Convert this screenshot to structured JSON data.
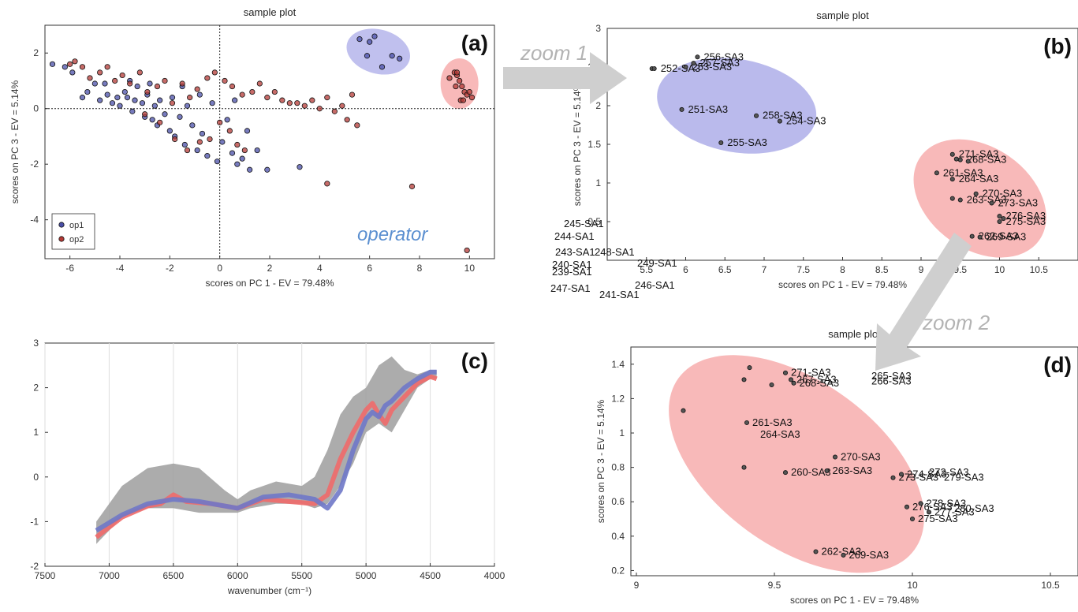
{
  "zoom1": "zoom 1",
  "zoom2": "zoom 2",
  "chart_data": [
    {
      "panel": "(a)",
      "type": "scatter",
      "title": "sample plot",
      "xlabel": "scores on PC 1 - EV = 79.48%",
      "ylabel": "scores on PC 3 - EV = 5.14%",
      "xlim": [
        -7,
        11
      ],
      "ylim": [
        -5.4,
        3
      ],
      "xticks": [
        "-6",
        "-4",
        "-2",
        "0",
        "2",
        "4",
        "6",
        "8",
        "10"
      ],
      "yticks": [
        "2",
        "0",
        "-2",
        "-4"
      ],
      "annotation": "operator",
      "legend": "bottom-left",
      "series": [
        {
          "name": "op1",
          "color": "#4a4fa8",
          "points": [
            [
              -6.7,
              1.6
            ],
            [
              -6.2,
              1.5
            ],
            [
              -5.9,
              1.3
            ],
            [
              -5.5,
              0.4
            ],
            [
              -5.3,
              0.6
            ],
            [
              -5.0,
              0.9
            ],
            [
              -4.8,
              0.3
            ],
            [
              -4.5,
              0.5
            ],
            [
              -4.3,
              0.2
            ],
            [
              -4.1,
              0.4
            ],
            [
              -4.0,
              0.1
            ],
            [
              -3.8,
              0.6
            ],
            [
              -3.7,
              0.4
            ],
            [
              -3.5,
              -0.1
            ],
            [
              -3.4,
              0.3
            ],
            [
              -3.3,
              0.8
            ],
            [
              -3.1,
              0.2
            ],
            [
              -3.0,
              -0.3
            ],
            [
              -2.9,
              0.5
            ],
            [
              -2.7,
              -0.4
            ],
            [
              -2.6,
              0.1
            ],
            [
              -2.5,
              -0.6
            ],
            [
              -2.4,
              0.3
            ],
            [
              -2.2,
              -0.2
            ],
            [
              -2.0,
              -0.8
            ],
            [
              -1.9,
              0.4
            ],
            [
              -1.8,
              -1.0
            ],
            [
              -1.6,
              -0.3
            ],
            [
              -1.4,
              -1.3
            ],
            [
              -1.3,
              0.1
            ],
            [
              -1.1,
              -0.6
            ],
            [
              -0.9,
              -1.5
            ],
            [
              -0.7,
              -0.9
            ],
            [
              -0.5,
              -1.7
            ],
            [
              -0.3,
              0.2
            ],
            [
              -0.1,
              -1.9
            ],
            [
              0.1,
              -1.2
            ],
            [
              0.3,
              -0.4
            ],
            [
              0.5,
              -1.6
            ],
            [
              0.7,
              -2.0
            ],
            [
              0.9,
              -1.8
            ],
            [
              1.2,
              -2.2
            ],
            [
              1.5,
              -1.5
            ],
            [
              1.9,
              -2.2
            ],
            [
              3.2,
              -2.1
            ],
            [
              -4.6,
              0.9
            ],
            [
              -3.6,
              1.0
            ],
            [
              -2.8,
              0.9
            ],
            [
              -1.5,
              0.8
            ],
            [
              -0.8,
              0.5
            ],
            [
              0.6,
              0.3
            ],
            [
              1.1,
              -0.8
            ],
            [
              5.6,
              2.5
            ],
            [
              5.9,
              1.9
            ],
            [
              6.2,
              2.6
            ],
            [
              6.5,
              1.5
            ],
            [
              6.9,
              1.9
            ],
            [
              7.2,
              1.8
            ],
            [
              6.0,
              2.4
            ]
          ]
        },
        {
          "name": "op2",
          "color": "#b43a36",
          "points": [
            [
              -6.0,
              1.6
            ],
            [
              -5.8,
              1.7
            ],
            [
              -5.5,
              1.5
            ],
            [
              -5.2,
              1.1
            ],
            [
              -4.8,
              1.3
            ],
            [
              -4.5,
              1.5
            ],
            [
              -4.2,
              1.0
            ],
            [
              -3.9,
              1.2
            ],
            [
              -3.6,
              0.9
            ],
            [
              -3.2,
              1.3
            ],
            [
              -2.9,
              0.6
            ],
            [
              -2.5,
              0.8
            ],
            [
              -2.2,
              1.0
            ],
            [
              -1.9,
              0.2
            ],
            [
              -1.5,
              0.9
            ],
            [
              -1.2,
              0.4
            ],
            [
              -0.9,
              0.7
            ],
            [
              -0.5,
              1.1
            ],
            [
              -0.2,
              1.3
            ],
            [
              0.2,
              1.0
            ],
            [
              0.5,
              0.8
            ],
            [
              0.9,
              0.5
            ],
            [
              1.3,
              0.6
            ],
            [
              1.6,
              0.9
            ],
            [
              1.9,
              0.4
            ],
            [
              2.2,
              0.6
            ],
            [
              2.5,
              0.3
            ],
            [
              2.8,
              0.2
            ],
            [
              3.1,
              0.2
            ],
            [
              3.4,
              0.1
            ],
            [
              3.7,
              0.3
            ],
            [
              4.0,
              0.0
            ],
            [
              4.3,
              0.4
            ],
            [
              4.6,
              -0.1
            ],
            [
              4.9,
              0.1
            ],
            [
              5.1,
              -0.4
            ],
            [
              5.3,
              0.5
            ],
            [
              5.5,
              -0.6
            ],
            [
              -3.0,
              -0.2
            ],
            [
              -2.4,
              -0.5
            ],
            [
              -1.8,
              -1.1
            ],
            [
              -1.3,
              -1.5
            ],
            [
              -0.8,
              -1.2
            ],
            [
              -0.4,
              -1.1
            ],
            [
              0.0,
              -0.5
            ],
            [
              0.4,
              -0.8
            ],
            [
              0.7,
              -1.3
            ],
            [
              1.0,
              -1.5
            ],
            [
              4.3,
              -2.7
            ],
            [
              7.7,
              -2.8
            ],
            [
              9.9,
              -5.1
            ],
            [
              9.2,
              1.1
            ],
            [
              9.4,
              1.3
            ],
            [
              9.5,
              1.2
            ],
            [
              9.6,
              1.0
            ],
            [
              9.7,
              0.8
            ],
            [
              9.8,
              0.6
            ],
            [
              9.9,
              0.5
            ],
            [
              10.0,
              0.6
            ],
            [
              10.1,
              0.4
            ],
            [
              9.65,
              0.3
            ],
            [
              9.75,
              0.3
            ],
            [
              9.45,
              0.8
            ],
            [
              9.5,
              1.3
            ]
          ]
        }
      ]
    },
    {
      "panel": "(b)",
      "type": "scatter",
      "title": "sample plot",
      "xlabel": "scores on PC 1 - EV = 79.48%",
      "ylabel": "scores on PC 3 - EV = 5.14%",
      "xlim": [
        5,
        11
      ],
      "ylim": [
        0,
        3
      ],
      "xticks": [
        "5.5",
        "6",
        "6.5",
        "7",
        "7.5",
        "8",
        "8.5",
        "9",
        "9.5",
        "10",
        "10.5"
      ],
      "yticks": [
        "3",
        "2.5",
        "2",
        "1.5",
        "1",
        "0.5"
      ],
      "points": [
        {
          "x": 5.57,
          "y": 2.48,
          "label": ""
        },
        {
          "x": 5.6,
          "y": 2.48,
          "label": "252-SA3"
        },
        {
          "x": 6.0,
          "y": 2.5,
          "label": "253-SA3"
        },
        {
          "x": 6.15,
          "y": 2.63,
          "label": "256-SA3"
        },
        {
          "x": 6.1,
          "y": 2.55,
          "label": "257-SA3"
        },
        {
          "x": 5.95,
          "y": 1.95,
          "label": "251-SA3"
        },
        {
          "x": 6.9,
          "y": 1.87,
          "label": "258-SA3"
        },
        {
          "x": 7.2,
          "y": 1.8,
          "label": "254-SA3"
        },
        {
          "x": 6.45,
          "y": 1.52,
          "label": "255-SA3"
        },
        {
          "x": 9.2,
          "y": 1.13,
          "label": "261-SA3"
        },
        {
          "x": 9.4,
          "y": 1.05,
          "label": "264-SA3"
        },
        {
          "x": 9.4,
          "y": 1.37,
          "label": "271-SA3"
        },
        {
          "x": 9.5,
          "y": 1.3,
          "label": "268-SA3"
        },
        {
          "x": 9.7,
          "y": 0.86,
          "label": "270-SA3"
        },
        {
          "x": 9.5,
          "y": 0.78,
          "label": "263-SA3"
        },
        {
          "x": 9.9,
          "y": 0.74,
          "label": "273-SA3"
        },
        {
          "x": 10.0,
          "y": 0.57,
          "label": "276-SA3"
        },
        {
          "x": 10.0,
          "y": 0.5,
          "label": "275-SA3"
        },
        {
          "x": 9.65,
          "y": 0.31,
          "label": "262-SA3"
        },
        {
          "x": 9.75,
          "y": 0.3,
          "label": "269-SA3"
        },
        {
          "x": 9.4,
          "y": 0.8,
          "label": ""
        },
        {
          "x": 9.6,
          "y": 1.28,
          "label": ""
        },
        {
          "x": 10.05,
          "y": 0.54,
          "label": ""
        },
        {
          "x": 9.45,
          "y": 1.31,
          "label": ""
        }
      ],
      "offscale_labels": [
        "245-SA1",
        "244-SA1",
        "243-SA1",
        "248-SA1",
        "240-SA1",
        "239-SA1",
        "249-SA1",
        "247-SA1",
        "246-SA1",
        "241-SA1"
      ]
    },
    {
      "panel": "(c)",
      "type": "line",
      "xlabel": "wavenumber (cm-1)",
      "ylabel": "",
      "xlim": [
        7500,
        4000
      ],
      "ylim": [
        -2,
        3
      ],
      "xticks": [
        "7500",
        "7000",
        "6500",
        "6000",
        "5500",
        "5000",
        "4500",
        "4000"
      ],
      "yticks": [
        "3",
        "2",
        "1",
        "0",
        "-1",
        "-2"
      ],
      "series": [
        {
          "name": "",
          "color": "#9e9e9e",
          "kind": "band",
          "x": [
            7100,
            6900,
            6700,
            6500,
            6300,
            6100,
            6000,
            5900,
            5700,
            5500,
            5400,
            5300,
            5200,
            5100,
            5000,
            4900,
            4800,
            4700,
            4600,
            4500,
            4450
          ],
          "upper": [
            -1.0,
            -0.2,
            0.2,
            0.3,
            0.2,
            -0.3,
            -0.5,
            -0.3,
            -0.1,
            -0.2,
            0.0,
            0.6,
            1.4,
            1.8,
            2.0,
            2.5,
            2.7,
            2.4,
            2.3,
            2.4,
            2.4
          ],
          "lower": [
            -1.5,
            -0.9,
            -0.7,
            -0.7,
            -0.8,
            -0.8,
            -0.8,
            -0.7,
            -0.6,
            -0.6,
            -0.7,
            -0.6,
            -0.2,
            0.3,
            1.0,
            1.2,
            1.0,
            1.5,
            2.0,
            2.2,
            2.2
          ]
        },
        {
          "name": "",
          "color": "#f06a6a",
          "kind": "line",
          "x": [
            7100,
            6900,
            6700,
            6600,
            6500,
            6400,
            6200,
            6000,
            5800,
            5600,
            5400,
            5300,
            5200,
            5100,
            5000,
            4950,
            4900,
            4850,
            4800,
            4700,
            4600,
            4500,
            4450
          ],
          "y": [
            -1.35,
            -0.9,
            -0.65,
            -0.6,
            -0.4,
            -0.55,
            -0.6,
            -0.7,
            -0.5,
            -0.55,
            -0.6,
            -0.4,
            0.4,
            1.0,
            1.5,
            1.65,
            1.4,
            1.2,
            1.5,
            1.8,
            2.1,
            2.25,
            2.2
          ]
        },
        {
          "name": "",
          "color": "#6f78c8",
          "kind": "line",
          "x": [
            7100,
            6900,
            6700,
            6500,
            6300,
            6100,
            6000,
            5800,
            5600,
            5400,
            5300,
            5200,
            5100,
            5000,
            4950,
            4900,
            4850,
            4800,
            4700,
            4600,
            4500,
            4450
          ],
          "y": [
            -1.2,
            -0.85,
            -0.6,
            -0.5,
            -0.55,
            -0.65,
            -0.7,
            -0.45,
            -0.4,
            -0.5,
            -0.7,
            -0.3,
            0.6,
            1.3,
            1.45,
            1.35,
            1.6,
            1.7,
            2.0,
            2.2,
            2.35,
            2.35
          ]
        }
      ]
    },
    {
      "panel": "(d)",
      "type": "scatter",
      "title": "sample plot",
      "xlabel": "scores on PC 1 - EV = 79.48%",
      "ylabel": "scores on PC 3 - EV = 5.14%",
      "xlim": [
        8.98,
        10.6
      ],
      "ylim": [
        0.17,
        1.5
      ],
      "xticks": [
        "9",
        "9.5",
        "10",
        "10.5"
      ],
      "yticks": [
        "1.4",
        "1.2",
        "1",
        "0.8",
        "0.6",
        "0.4",
        "0.2"
      ],
      "points": [
        {
          "x": 9.17,
          "y": 1.13,
          "label": ""
        },
        {
          "x": 9.39,
          "y": 1.31,
          "label": ""
        },
        {
          "x": 9.41,
          "y": 1.38,
          "label": ""
        },
        {
          "x": 9.4,
          "y": 1.06,
          "label": "261-SA3"
        },
        {
          "x": 9.54,
          "y": 1.35,
          "label": "271-SA3"
        },
        {
          "x": 9.56,
          "y": 1.31,
          "label": "267-SA3"
        },
        {
          "x": 9.49,
          "y": 1.28,
          "label": ""
        },
        {
          "x": 9.57,
          "y": 1.29,
          "label": "268-SA3"
        },
        {
          "x": 9.39,
          "y": 0.8,
          "label": ""
        },
        {
          "x": 9.54,
          "y": 0.77,
          "label": "260-SA3"
        },
        {
          "x": 9.72,
          "y": 0.86,
          "label": "270-SA3"
        },
        {
          "x": 9.69,
          "y": 0.78,
          "label": "263-SA3"
        },
        {
          "x": 9.93,
          "y": 0.74,
          "label": "273-SA3"
        },
        {
          "x": 9.96,
          "y": 0.76,
          "label": "274-SA3"
        },
        {
          "x": 9.98,
          "y": 0.57,
          "label": "276-SA3"
        },
        {
          "x": 10.0,
          "y": 0.5,
          "label": "275-SA3"
        },
        {
          "x": 10.03,
          "y": 0.59,
          "label": "278-SA3"
        },
        {
          "x": 10.06,
          "y": 0.54,
          "label": "277-SA3"
        },
        {
          "x": 9.65,
          "y": 0.31,
          "label": "262-SA3"
        },
        {
          "x": 9.75,
          "y": 0.29,
          "label": "269-SA3"
        }
      ],
      "extra_labels": [
        "264-SA3",
        "279-SA3",
        "265-SA3",
        "266-SA3",
        "272-SA3",
        "280-SA3"
      ]
    }
  ]
}
